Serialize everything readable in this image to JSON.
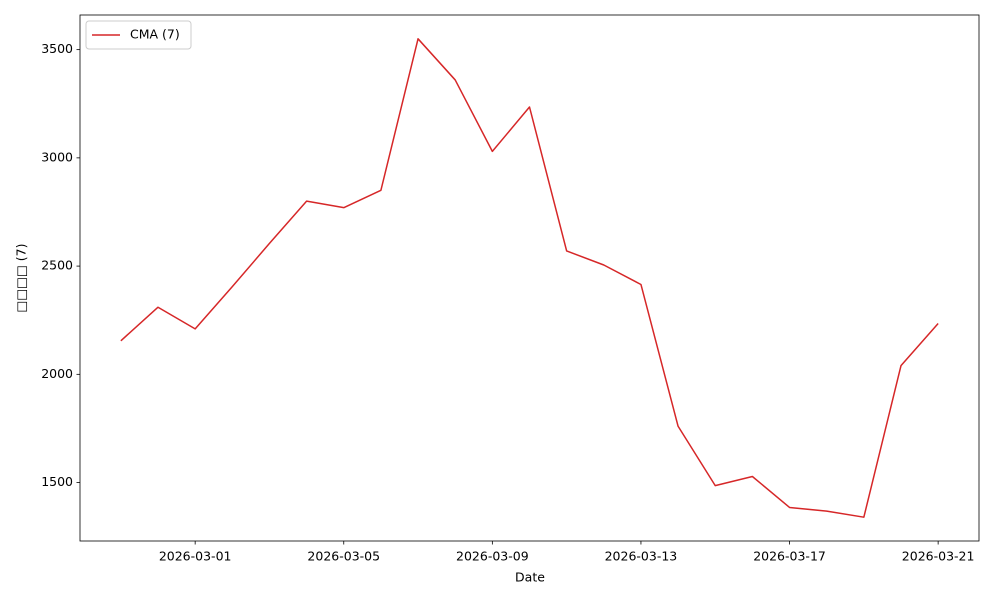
{
  "chart_data": {
    "type": "line",
    "xlabel": "Date",
    "ylabel": "□□□□ (7)",
    "x": [
      "2026-02-27",
      "2026-02-28",
      "2026-03-01",
      "2026-03-02",
      "2026-03-03",
      "2026-03-04",
      "2026-03-05",
      "2026-03-06",
      "2026-03-07",
      "2026-03-08",
      "2026-03-09",
      "2026-03-10",
      "2026-03-11",
      "2026-03-12",
      "2026-03-13",
      "2026-03-14",
      "2026-03-15",
      "2026-03-16",
      "2026-03-17",
      "2026-03-18",
      "2026-03-19",
      "2026-03-20",
      "2026-03-21"
    ],
    "series": [
      {
        "name": "CMA (7)",
        "color": "#d62728",
        "values": [
          2155,
          2310,
          2210,
          2405,
          2605,
          2800,
          2770,
          2850,
          3550,
          3360,
          3030,
          3235,
          2570,
          2505,
          2415,
          1760,
          1486,
          1528,
          1385,
          1368,
          1340,
          2040,
          2235
        ]
      }
    ],
    "xlim": [
      "2026-02-25T21:36",
      "2026-03-22T02:24"
    ],
    "xticks": [
      "2026-03-01",
      "2026-03-05",
      "2026-03-09",
      "2026-03-13",
      "2026-03-17",
      "2026-03-21"
    ],
    "ylim": [
      1230,
      3660
    ],
    "yticks": [
      1500,
      2000,
      2500,
      3000,
      3500
    ],
    "grid": false,
    "legend": "upper left"
  }
}
